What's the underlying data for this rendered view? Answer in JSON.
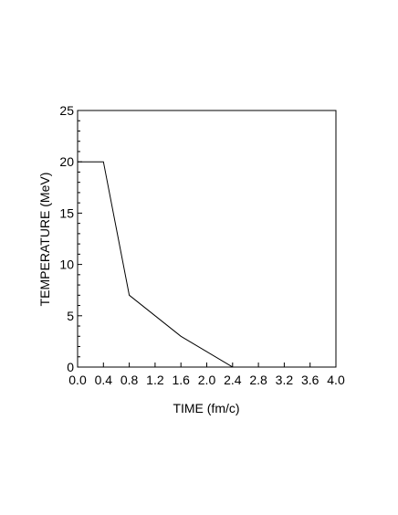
{
  "chart_data": {
    "type": "line",
    "title": "",
    "xlabel": "TIME  (fm/c)",
    "ylabel": "TEMPERATURE  (MeV)",
    "xlim": [
      0.0,
      4.0
    ],
    "ylim": [
      0,
      25
    ],
    "x_ticks": [
      "0.0",
      "0.4",
      "0.8",
      "1.2",
      "1.6",
      "2.0",
      "2.4",
      "2.8",
      "3.2",
      "3.6",
      "4.0"
    ],
    "y_ticks": [
      "0",
      "5",
      "10",
      "15",
      "20",
      "25"
    ],
    "grid": false,
    "series": [
      {
        "x": [
          0.0,
          0.4,
          0.8,
          1.6,
          2.4
        ],
        "y": [
          20,
          20,
          7,
          3,
          0
        ]
      }
    ],
    "colors": {
      "line": "#000000",
      "axes": "#000000"
    }
  }
}
